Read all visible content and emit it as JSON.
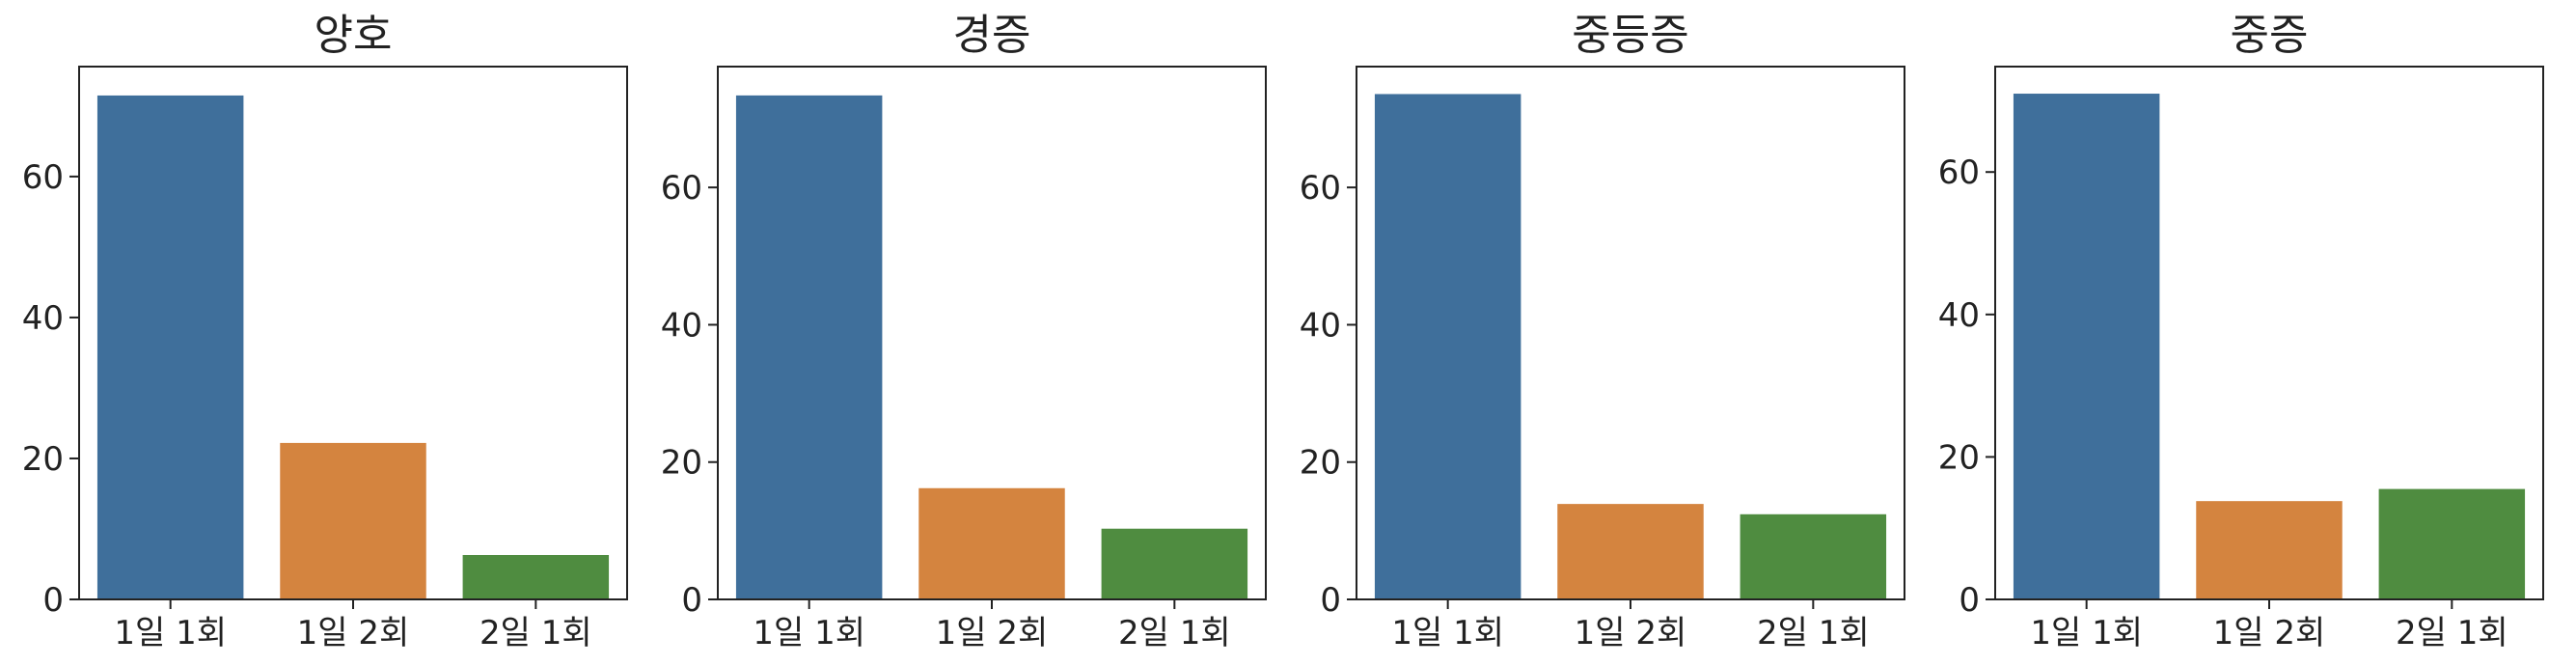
{
  "chart_data": [
    {
      "type": "bar",
      "title": "양호",
      "categories": [
        "1일 1회",
        "1일 2회",
        "2일 1회"
      ],
      "values": [
        71.5,
        22.2,
        6.3
      ],
      "ylim": [
        0,
        75.6
      ],
      "yticks": [
        0,
        20,
        40,
        60
      ],
      "xlabel": "",
      "ylabel": "",
      "colors": [
        "#3f6f9b",
        "#d4843f",
        "#4f8c40"
      ],
      "grid": false
    },
    {
      "type": "bar",
      "title": "경증",
      "categories": [
        "1일 1회",
        "1일 2회",
        "2일 1회"
      ],
      "values": [
        73.4,
        16.2,
        10.3
      ],
      "ylim": [
        0,
        77.6
      ],
      "yticks": [
        0,
        20,
        40,
        60
      ],
      "xlabel": "",
      "ylabel": "",
      "colors": [
        "#3f6f9b",
        "#d4843f",
        "#4f8c40"
      ],
      "grid": false
    },
    {
      "type": "bar",
      "title": "중등증",
      "categories": [
        "1일 1회",
        "1일 2회",
        "2일 1회"
      ],
      "values": [
        73.6,
        13.9,
        12.4
      ],
      "ylim": [
        0,
        77.6
      ],
      "yticks": [
        0,
        20,
        40,
        60
      ],
      "xlabel": "",
      "ylabel": "",
      "colors": [
        "#3f6f9b",
        "#d4843f",
        "#4f8c40"
      ],
      "grid": false
    },
    {
      "type": "bar",
      "title": "중증",
      "categories": [
        "1일 1회",
        "1일 2회",
        "2일 1회"
      ],
      "values": [
        71.0,
        13.8,
        15.5
      ],
      "ylim": [
        0,
        74.8
      ],
      "yticks": [
        0,
        20,
        40,
        60
      ],
      "xlabel": "",
      "ylabel": "",
      "colors": [
        "#3f6f9b",
        "#d4843f",
        "#4f8c40"
      ],
      "grid": false
    }
  ]
}
